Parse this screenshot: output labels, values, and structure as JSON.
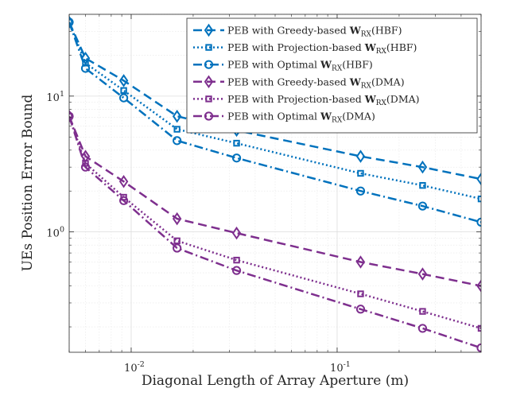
{
  "chart_data": {
    "type": "line",
    "title": "",
    "xlabel": "Diagonal Length of Array Aperture (m)",
    "ylabel": "UEs Position Error Bound",
    "xscale": "log",
    "yscale": "log",
    "xlim": [
      0.005,
      0.5
    ],
    "ylim": [
      0.13,
      40
    ],
    "grid": true,
    "legend_position": "top-right",
    "x": [
      0.005,
      0.006,
      0.0092,
      0.0167,
      0.0325,
      0.13,
      0.26,
      0.5
    ],
    "xticks": [
      {
        "value": 0.01,
        "base": "10",
        "exp": "-2"
      },
      {
        "value": 0.1,
        "base": "10",
        "exp": "-1"
      }
    ],
    "yticks": [
      {
        "value": 1,
        "base": "10",
        "exp": "0"
      },
      {
        "value": 10,
        "base": "10",
        "exp": "1"
      }
    ],
    "series": [
      {
        "name": "PEB with Greedy-based W_RX(HBF)",
        "legend": {
          "prefix": "PEB with Greedy-based ",
          "bold": "W",
          "sub": "RX",
          "suffix": "(HBF)"
        },
        "color": "#0072BD",
        "dash": "dashed",
        "marker": "diamond",
        "values": [
          35,
          19,
          13,
          7.1,
          5.6,
          3.6,
          3.0,
          2.45
        ]
      },
      {
        "name": "PEB with Projection-based W_RX(HBF)",
        "legend": {
          "prefix": "PEB with Projection-based ",
          "bold": "W",
          "sub": "RX",
          "suffix": "(HBF)"
        },
        "color": "#0072BD",
        "dash": "dotted",
        "marker": "square",
        "values": [
          35,
          17.5,
          11,
          5.7,
          4.5,
          2.7,
          2.2,
          1.75
        ]
      },
      {
        "name": "PEB with Optimal W_RX(HBF)",
        "legend": {
          "prefix": "PEB with Optimal ",
          "bold": "W",
          "sub": "RX",
          "suffix": "(HBF)"
        },
        "color": "#0072BD",
        "dash": "dashdot",
        "marker": "circle",
        "values": [
          35,
          16,
          9.7,
          4.7,
          3.5,
          2.0,
          1.55,
          1.18
        ]
      },
      {
        "name": "PEB with Greedy-based W_RX(DMA)",
        "legend": {
          "prefix": "PEB with Greedy-based ",
          "bold": "W",
          "sub": "RX",
          "suffix": "(DMA)"
        },
        "color": "#7E2F8E",
        "dash": "dashed",
        "marker": "diamond",
        "values": [
          7.1,
          3.6,
          2.35,
          1.25,
          0.98,
          0.6,
          0.49,
          0.4
        ]
      },
      {
        "name": "PEB with Projection-based W_RX(DMA)",
        "legend": {
          "prefix": "PEB with Projection-based ",
          "bold": "W",
          "sub": "RX",
          "suffix": "(DMA)"
        },
        "color": "#7E2F8E",
        "dash": "dotted",
        "marker": "square",
        "values": [
          7.1,
          3.2,
          1.8,
          0.86,
          0.62,
          0.35,
          0.26,
          0.195
        ]
      },
      {
        "name": "PEB with Optimal W_RX(DMA)",
        "legend": {
          "prefix": "PEB with Optimal ",
          "bold": "W",
          "sub": "RX",
          "suffix": "(DMA)"
        },
        "color": "#7E2F8E",
        "dash": "dashdot",
        "marker": "circle",
        "values": [
          7.1,
          3.0,
          1.7,
          0.76,
          0.52,
          0.27,
          0.195,
          0.14
        ]
      }
    ]
  }
}
